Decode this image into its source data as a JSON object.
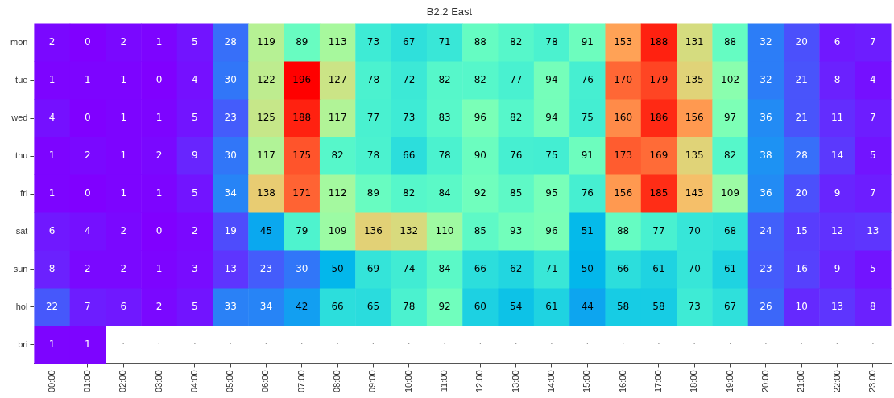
{
  "chart_data": {
    "type": "heatmap",
    "title": "B2.2 East",
    "grid": false,
    "data_labels": true,
    "categories": [
      "00:00",
      "01:00",
      "02:00",
      "03:00",
      "04:00",
      "05:00",
      "06:00",
      "07:00",
      "08:00",
      "09:00",
      "10:00",
      "11:00",
      "12:00",
      "13:00",
      "14:00",
      "15:00",
      "16:00",
      "17:00",
      "18:00",
      "19:00",
      "20:00",
      "21:00",
      "22:00",
      "23:00"
    ],
    "y_categories": [
      "mon",
      "tue",
      "wed",
      "thu",
      "fri",
      "sat",
      "sun",
      "hol",
      "bri"
    ],
    "cells": [
      [
        2,
        0,
        2,
        1,
        5,
        28,
        119,
        89,
        113,
        73,
        67,
        71,
        88,
        82,
        78,
        91,
        153,
        188,
        131,
        88,
        32,
        20,
        6,
        7
      ],
      [
        1,
        1,
        1,
        0,
        4,
        30,
        122,
        196,
        127,
        78,
        72,
        82,
        82,
        77,
        94,
        76,
        170,
        179,
        135,
        102,
        32,
        21,
        8,
        4
      ],
      [
        4,
        0,
        1,
        1,
        5,
        23,
        125,
        188,
        117,
        77,
        73,
        83,
        96,
        82,
        94,
        75,
        160,
        186,
        156,
        97,
        36,
        21,
        11,
        7
      ],
      [
        1,
        2,
        1,
        2,
        9,
        30,
        117,
        175,
        82,
        78,
        66,
        78,
        90,
        76,
        75,
        91,
        173,
        169,
        135,
        82,
        38,
        28,
        14,
        5
      ],
      [
        1,
        0,
        1,
        1,
        5,
        34,
        138,
        171,
        112,
        89,
        82,
        84,
        92,
        85,
        95,
        76,
        156,
        185,
        143,
        109,
        36,
        20,
        9,
        7
      ],
      [
        6,
        4,
        2,
        0,
        2,
        19,
        45,
        79,
        109,
        136,
        132,
        110,
        85,
        93,
        96,
        51,
        88,
        77,
        70,
        68,
        24,
        15,
        12,
        13
      ],
      [
        8,
        2,
        2,
        1,
        3,
        13,
        23,
        30,
        50,
        69,
        74,
        84,
        66,
        62,
        71,
        50,
        66,
        61,
        70,
        61,
        23,
        16,
        9,
        5
      ],
      [
        22,
        7,
        6,
        2,
        5,
        33,
        34,
        42,
        66,
        65,
        78,
        92,
        60,
        54,
        61,
        44,
        58,
        58,
        73,
        67,
        26,
        10,
        13,
        8
      ],
      [
        1,
        1,
        null,
        null,
        null,
        null,
        null,
        null,
        null,
        null,
        null,
        null,
        null,
        null,
        null,
        null,
        null,
        null,
        null,
        null,
        null,
        null,
        null,
        null
      ]
    ],
    "cell_labels": [
      [
        "2",
        "0",
        "2",
        "1",
        "5",
        "28",
        "119",
        "89",
        "113",
        "73",
        "67",
        "71",
        "88",
        "82",
        "78",
        "91",
        "153",
        "188",
        "131",
        "88",
        "32",
        "20",
        "6",
        "7"
      ],
      [
        "1",
        "1",
        "1",
        "0",
        "4",
        "30",
        "122",
        "196",
        "127",
        "78",
        "72",
        "82",
        "82",
        "77",
        "94",
        "76",
        "170",
        "179",
        "135",
        "102",
        "32",
        "21",
        "8",
        "4"
      ],
      [
        "4",
        "0",
        "1",
        "1",
        "5",
        "23",
        "125",
        "188",
        "117",
        "77",
        "73",
        "83",
        "96",
        "82",
        "94",
        "75",
        "160",
        "186",
        "156",
        "97",
        "36",
        "21",
        "11",
        "7"
      ],
      [
        "1",
        "2",
        "1",
        "2",
        "9",
        "30",
        "117",
        "175",
        "82",
        "78",
        "66",
        "78",
        "90",
        "76",
        "75",
        "91",
        "173",
        "169",
        "135",
        "82",
        "38",
        "28",
        "14",
        "5"
      ],
      [
        "1",
        "0",
        "1",
        "1",
        "5",
        "34",
        "138",
        "171",
        "112",
        "89",
        "82",
        "84",
        "92",
        "85",
        "95",
        "76",
        "156",
        "185",
        "143",
        "109",
        "36",
        "20",
        "9",
        "7"
      ],
      [
        "6",
        "4",
        "2",
        "0",
        "2",
        "19",
        "45",
        "79",
        "109",
        "136",
        "132",
        "110",
        "85",
        "93",
        "96",
        "51",
        "88",
        "77",
        "70",
        "68",
        "24",
        "15",
        "12",
        "13"
      ],
      [
        "8",
        "2",
        "2",
        "1",
        "3",
        "13",
        "23",
        "30",
        "50",
        "69",
        "74",
        "84",
        "66",
        "62",
        "71",
        "50",
        "66",
        "61",
        "70",
        "61",
        "23",
        "16",
        "9",
        "5"
      ],
      [
        "22",
        "7",
        "6",
        "2",
        "5",
        "33",
        "34",
        "42",
        "66",
        "65",
        "78",
        "92",
        "60",
        "54",
        "61",
        "44",
        "58",
        "58",
        "73",
        "67",
        "26",
        "10",
        "13",
        "8"
      ],
      [
        "1",
        "1",
        "·",
        "·",
        "·",
        "·",
        "·",
        "·",
        "·",
        "·",
        "·",
        "·",
        "·",
        "·",
        "·",
        "·",
        "·",
        "·",
        "·",
        "·",
        "·",
        "·",
        "·",
        "·"
      ]
    ]
  }
}
